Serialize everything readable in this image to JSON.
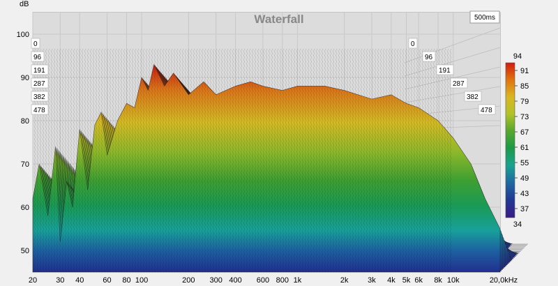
{
  "chart_data": {
    "type": "waterfall",
    "title": "Waterfall",
    "time_window_label": "500ms",
    "y_unit_label": "dB",
    "x_unit_label": "20,0kHz",
    "y_ticks": [
      50,
      60,
      70,
      80,
      90,
      100
    ],
    "ylim": [
      45,
      105
    ],
    "x_ticks": [
      "20",
      "30",
      "40",
      "60",
      "80",
      "100",
      "200",
      "300",
      "400",
      "600",
      "800",
      "1k",
      "2k",
      "3k",
      "4k",
      "5k",
      "6k",
      "8k",
      "10k"
    ],
    "x_tick_values": [
      20,
      30,
      40,
      60,
      80,
      100,
      200,
      300,
      400,
      600,
      800,
      1000,
      2000,
      3000,
      4000,
      5000,
      6000,
      8000,
      10000
    ],
    "xlim": [
      20,
      20000
    ],
    "x_scale": "log",
    "time_slices_ms": [
      "0",
      "96",
      "191",
      "287",
      "382",
      "478"
    ],
    "colorbar": {
      "max_label": "94",
      "min_label": "34",
      "tick_labels": [
        "91",
        "85",
        "79",
        "73",
        "67",
        "61",
        "55",
        "49",
        "43",
        "37"
      ],
      "colors": [
        "#d21c0e",
        "#e0740e",
        "#d9b623",
        "#b1c228",
        "#57a72d",
        "#1c9a47",
        "#19a38e",
        "#1f6aa2",
        "#213a95",
        "#3a1c87"
      ]
    },
    "front_slice": {
      "frequency_hz": [
        20,
        22,
        25,
        28,
        30,
        33,
        36,
        40,
        45,
        50,
        55,
        60,
        70,
        80,
        90,
        100,
        110,
        120,
        140,
        160,
        200,
        250,
        300,
        400,
        500,
        600,
        800,
        1000,
        1500,
        2000,
        3000,
        4000,
        5000,
        6000,
        8000,
        10000,
        13000,
        16000,
        20000
      ],
      "level_db": [
        62,
        70,
        58,
        74,
        52,
        66,
        60,
        78,
        64,
        79,
        82,
        72,
        80,
        84,
        83,
        90,
        87,
        93,
        88,
        91,
        86,
        89,
        86,
        88,
        89,
        88,
        87,
        88,
        88,
        87,
        85,
        86,
        84,
        83,
        80,
        76,
        70,
        62,
        55
      ]
    }
  }
}
